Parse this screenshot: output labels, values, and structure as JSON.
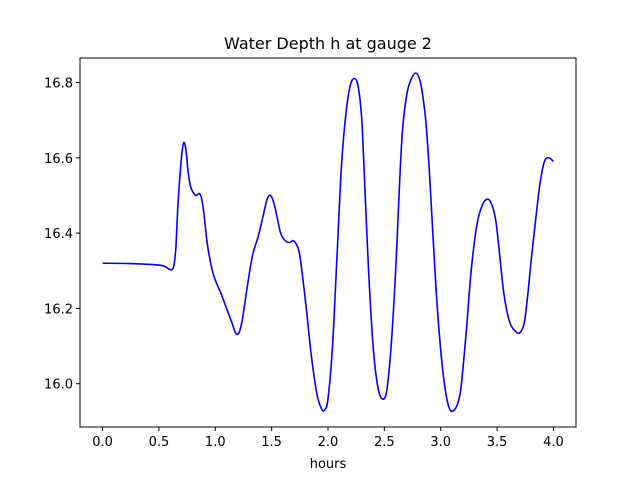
{
  "chart_data": {
    "type": "line",
    "title": "Water Depth h at gauge 2",
    "xlabel": "hours",
    "ylabel": "",
    "xlim": [
      -0.2,
      4.2
    ],
    "ylim": [
      15.885,
      16.865
    ],
    "xticks": [
      0.0,
      0.5,
      1.0,
      1.5,
      2.0,
      2.5,
      3.0,
      3.5,
      4.0
    ],
    "xtick_labels": [
      "0.0",
      "0.5",
      "1.0",
      "1.5",
      "2.0",
      "2.5",
      "3.0",
      "3.5",
      "4.0"
    ],
    "yticks": [
      16.0,
      16.2,
      16.4,
      16.6,
      16.8
    ],
    "ytick_labels": [
      "16.0",
      "16.2",
      "16.4",
      "16.6",
      "16.8"
    ],
    "grid": false,
    "legend": "none",
    "series": [
      {
        "color": "#0000ff",
        "x": [
          0.0,
          0.25,
          0.5,
          0.56,
          0.6,
          0.63,
          0.65,
          0.67,
          0.7,
          0.72,
          0.74,
          0.76,
          0.78,
          0.8,
          0.83,
          0.86,
          0.88,
          0.9,
          0.93,
          0.97,
          1.0,
          1.05,
          1.1,
          1.15,
          1.18,
          1.21,
          1.24,
          1.28,
          1.33,
          1.38,
          1.42,
          1.46,
          1.49,
          1.52,
          1.55,
          1.58,
          1.62,
          1.66,
          1.69,
          1.72,
          1.75,
          1.8,
          1.85,
          1.9,
          1.94,
          1.97,
          2.0,
          2.04,
          2.08,
          2.12,
          2.16,
          2.2,
          2.24,
          2.27,
          2.3,
          2.33,
          2.36,
          2.4,
          2.44,
          2.48,
          2.52,
          2.56,
          2.6,
          2.63,
          2.66,
          2.7,
          2.74,
          2.78,
          2.82,
          2.86,
          2.88,
          2.9,
          2.93,
          2.97,
          3.02,
          3.07,
          3.12,
          3.17,
          3.2,
          3.23,
          3.27,
          3.32,
          3.37,
          3.42,
          3.46,
          3.49,
          3.52,
          3.56,
          3.61,
          3.66,
          3.7,
          3.74,
          3.77,
          3.8,
          3.84,
          3.88,
          3.92,
          3.96,
          4.0
        ],
        "values": [
          16.32,
          16.319,
          16.315,
          16.31,
          16.303,
          16.31,
          16.36,
          16.48,
          16.6,
          16.64,
          16.62,
          16.56,
          16.525,
          16.51,
          16.5,
          16.505,
          16.49,
          16.45,
          16.37,
          16.305,
          16.275,
          16.24,
          16.2,
          16.16,
          16.135,
          16.135,
          16.17,
          16.25,
          16.34,
          16.39,
          16.44,
          16.49,
          16.5,
          16.48,
          16.44,
          16.4,
          16.38,
          16.375,
          16.38,
          16.37,
          16.34,
          16.22,
          16.08,
          15.975,
          15.935,
          15.93,
          15.96,
          16.1,
          16.34,
          16.58,
          16.72,
          16.795,
          16.81,
          16.785,
          16.7,
          16.5,
          16.3,
          16.1,
          15.995,
          15.96,
          15.98,
          16.1,
          16.3,
          16.5,
          16.67,
          16.77,
          16.81,
          16.825,
          16.8,
          16.72,
          16.65,
          16.56,
          16.4,
          16.2,
          16.03,
          15.94,
          15.93,
          15.97,
          16.05,
          16.15,
          16.3,
          16.42,
          16.475,
          16.49,
          16.47,
          16.43,
          16.35,
          16.24,
          16.165,
          16.14,
          16.135,
          16.16,
          16.23,
          16.32,
          16.43,
          16.53,
          16.59,
          16.6,
          16.59
        ]
      }
    ]
  }
}
